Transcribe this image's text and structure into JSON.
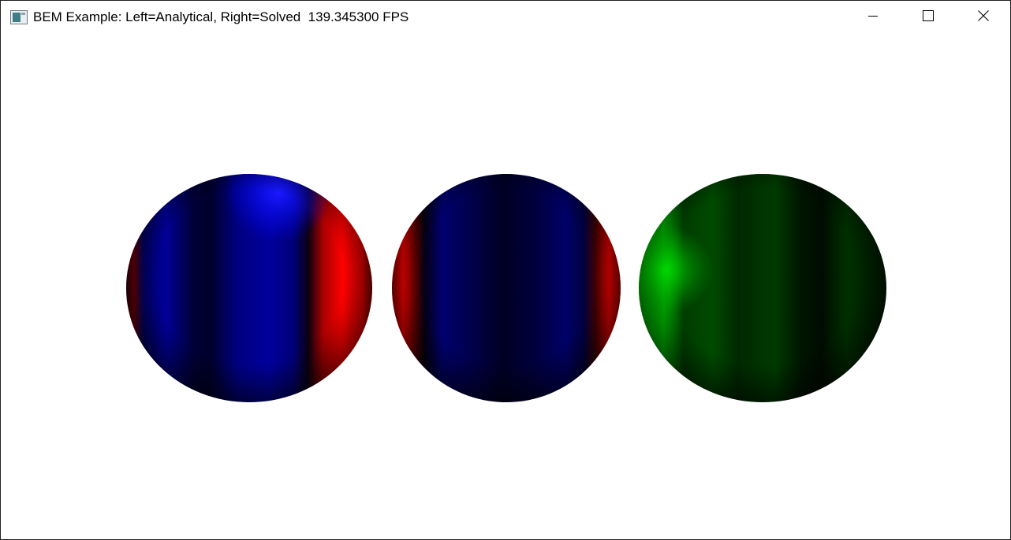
{
  "window": {
    "title": "BEM Example: Left=Analytical, Right=Solved  139.345300 FPS",
    "icons": {
      "app": "app-window-icon",
      "minimize": "minimize-icon",
      "maximize": "maximize-icon",
      "close": "close-icon"
    }
  },
  "viewport": {
    "background": "#ffffff",
    "spheres": [
      {
        "name": "analytical-sphere",
        "primary_color": "#0000ff",
        "secondary_color": "#ff0000"
      },
      {
        "name": "solved-sphere",
        "primary_color": "#0000aa",
        "secondary_color": "#ff0000"
      },
      {
        "name": "error-sphere",
        "primary_color": "#00c800",
        "secondary_color": "#001800"
      }
    ]
  }
}
